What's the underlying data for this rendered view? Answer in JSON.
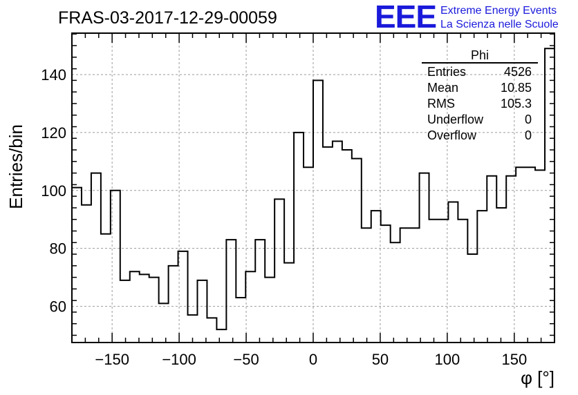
{
  "chart_data": {
    "type": "histogram",
    "title": "FRAS-03-2017-12-29-00059",
    "xlabel": "φ [°]",
    "ylabel": "Entries/bin",
    "xlim": [
      -180,
      180
    ],
    "ylim": [
      47.5,
      154.3
    ],
    "bin_width": 7.2,
    "grid": true,
    "x_ticks": [
      -150,
      -100,
      -50,
      0,
      50,
      100,
      150
    ],
    "x_tick_labels": [
      "−150",
      "−100",
      "−50",
      "0",
      "50",
      "100",
      "150"
    ],
    "y_ticks": [
      60,
      80,
      100,
      120,
      140
    ],
    "y_tick_labels": [
      "60",
      "80",
      "100",
      "120",
      "140"
    ],
    "values": [
      101,
      95,
      106,
      85,
      100,
      69,
      72,
      71,
      70,
      61,
      74,
      79,
      57,
      69,
      56,
      52,
      83,
      63,
      72,
      83,
      70,
      97,
      75,
      120,
      108,
      138,
      115,
      117,
      114,
      111,
      87,
      93,
      88,
      82,
      87,
      87,
      106,
      90,
      90,
      96,
      90,
      78,
      93,
      105,
      94,
      105,
      108,
      108,
      107,
      149
    ],
    "stats": {
      "title": "Phi",
      "rows": [
        {
          "label": "Entries",
          "value": "4526"
        },
        {
          "label": "Mean",
          "value": "10.85"
        },
        {
          "label": "RMS",
          "value": "105.3"
        },
        {
          "label": "Underflow",
          "value": "0"
        },
        {
          "label": "Overflow",
          "value": "0"
        }
      ]
    }
  },
  "logo": {
    "text": "EEE",
    "line1": "Extreme Energy Events",
    "line2": "La Scienza nelle Scuole",
    "color": "#1a1adb"
  },
  "colors": {
    "line": "#000000",
    "grid": "#9a9a9a"
  }
}
